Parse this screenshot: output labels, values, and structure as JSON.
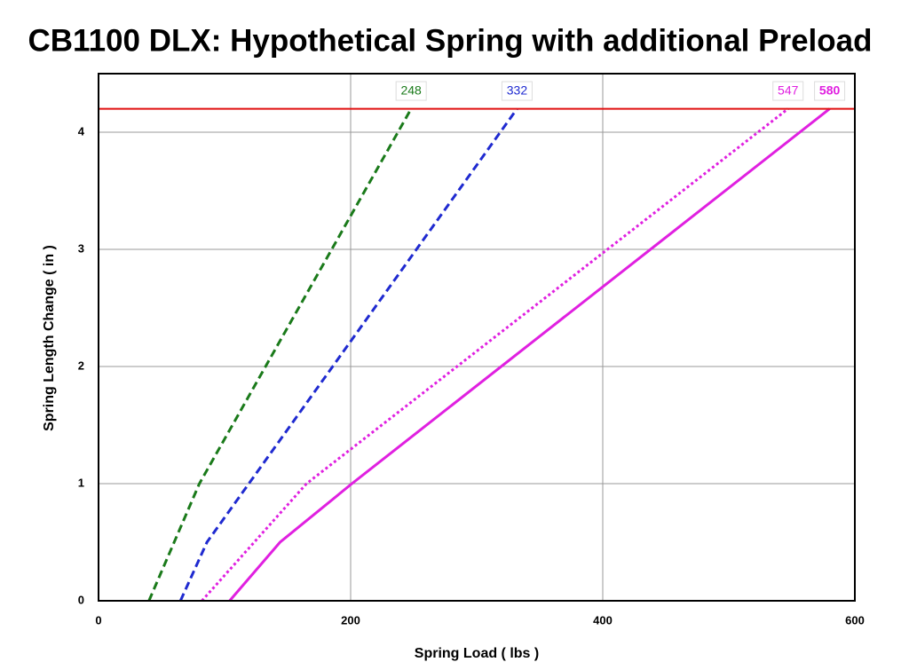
{
  "chart_data": {
    "type": "line",
    "title": "CB1100 DLX: Hypothetical Spring with additional Preload",
    "xlabel": "Spring Load ( lbs )",
    "ylabel": "Spring Length Change ( in )",
    "xlim": [
      0,
      600
    ],
    "ylim": [
      0,
      4.5
    ],
    "xticks": [
      0,
      200,
      400,
      600
    ],
    "yticks": [
      0,
      1,
      2,
      3,
      4
    ],
    "grid": true,
    "series": [
      {
        "color": "#1a7a1a",
        "dash": "dashed",
        "end_label": true,
        "x": [
          40,
          80,
          248
        ],
        "y": [
          0,
          1,
          4.2
        ]
      },
      {
        "color": "#1f2ad0",
        "dash": "dashed",
        "end_label": true,
        "x": [
          65,
          86,
          332
        ],
        "y": [
          0,
          0.5,
          4.2
        ]
      },
      {
        "color": "#e020e0",
        "dash": "dotted",
        "end_label": true,
        "x": [
          82,
          165,
          547
        ],
        "y": [
          0,
          1,
          4.2
        ]
      },
      {
        "color": "#e020e0",
        "dash": "solid",
        "end_label": true,
        "label_bold": true,
        "x": [
          104,
          144,
          201,
          580
        ],
        "y": [
          0,
          0.5,
          1,
          4.2
        ]
      },
      {
        "color": "#e01010",
        "dash": "solid",
        "end_label": false,
        "x": [
          0,
          600
        ],
        "y": [
          4.2,
          4.2
        ]
      }
    ]
  }
}
